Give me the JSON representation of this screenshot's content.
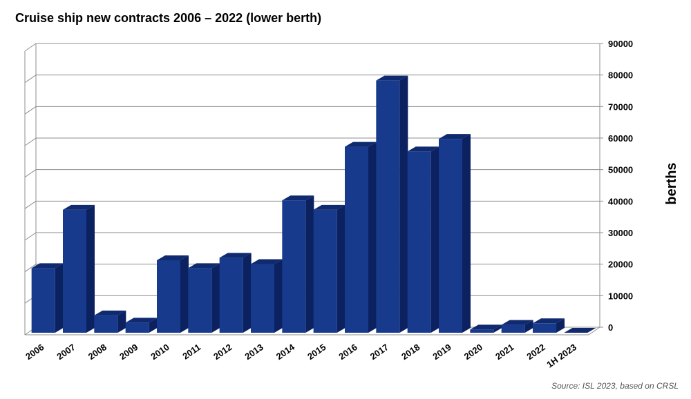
{
  "chart_data": {
    "type": "bar",
    "title": "Cruise ship new contracts 2006 – 2022 (lower berth)",
    "ylabel": "berths",
    "xlabel": "",
    "categories": [
      "2006",
      "2007",
      "2008",
      "2009",
      "2010",
      "2011",
      "2012",
      "2013",
      "2014",
      "2015",
      "2016",
      "2017",
      "2018",
      "2019",
      "2020",
      "2021",
      "2022",
      "1H 2023"
    ],
    "values": [
      20500,
      39000,
      5500,
      3200,
      23000,
      20500,
      23800,
      21800,
      42000,
      39000,
      59000,
      80000,
      57500,
      61500,
      1000,
      2500,
      3000,
      0
    ],
    "ylim": [
      0,
      90000
    ],
    "yticks": [
      0,
      10000,
      20000,
      30000,
      40000,
      50000,
      60000,
      70000,
      80000,
      90000
    ],
    "y_axis_position": "right",
    "grid": true,
    "legend": "none",
    "colors": {
      "bar_front": "#183a8c",
      "bar_side": "#0c2160",
      "bar_top": "#102a70",
      "grid": "#8c8c8c"
    }
  },
  "source_note": "Source: ISL 2023, based on CRSL"
}
